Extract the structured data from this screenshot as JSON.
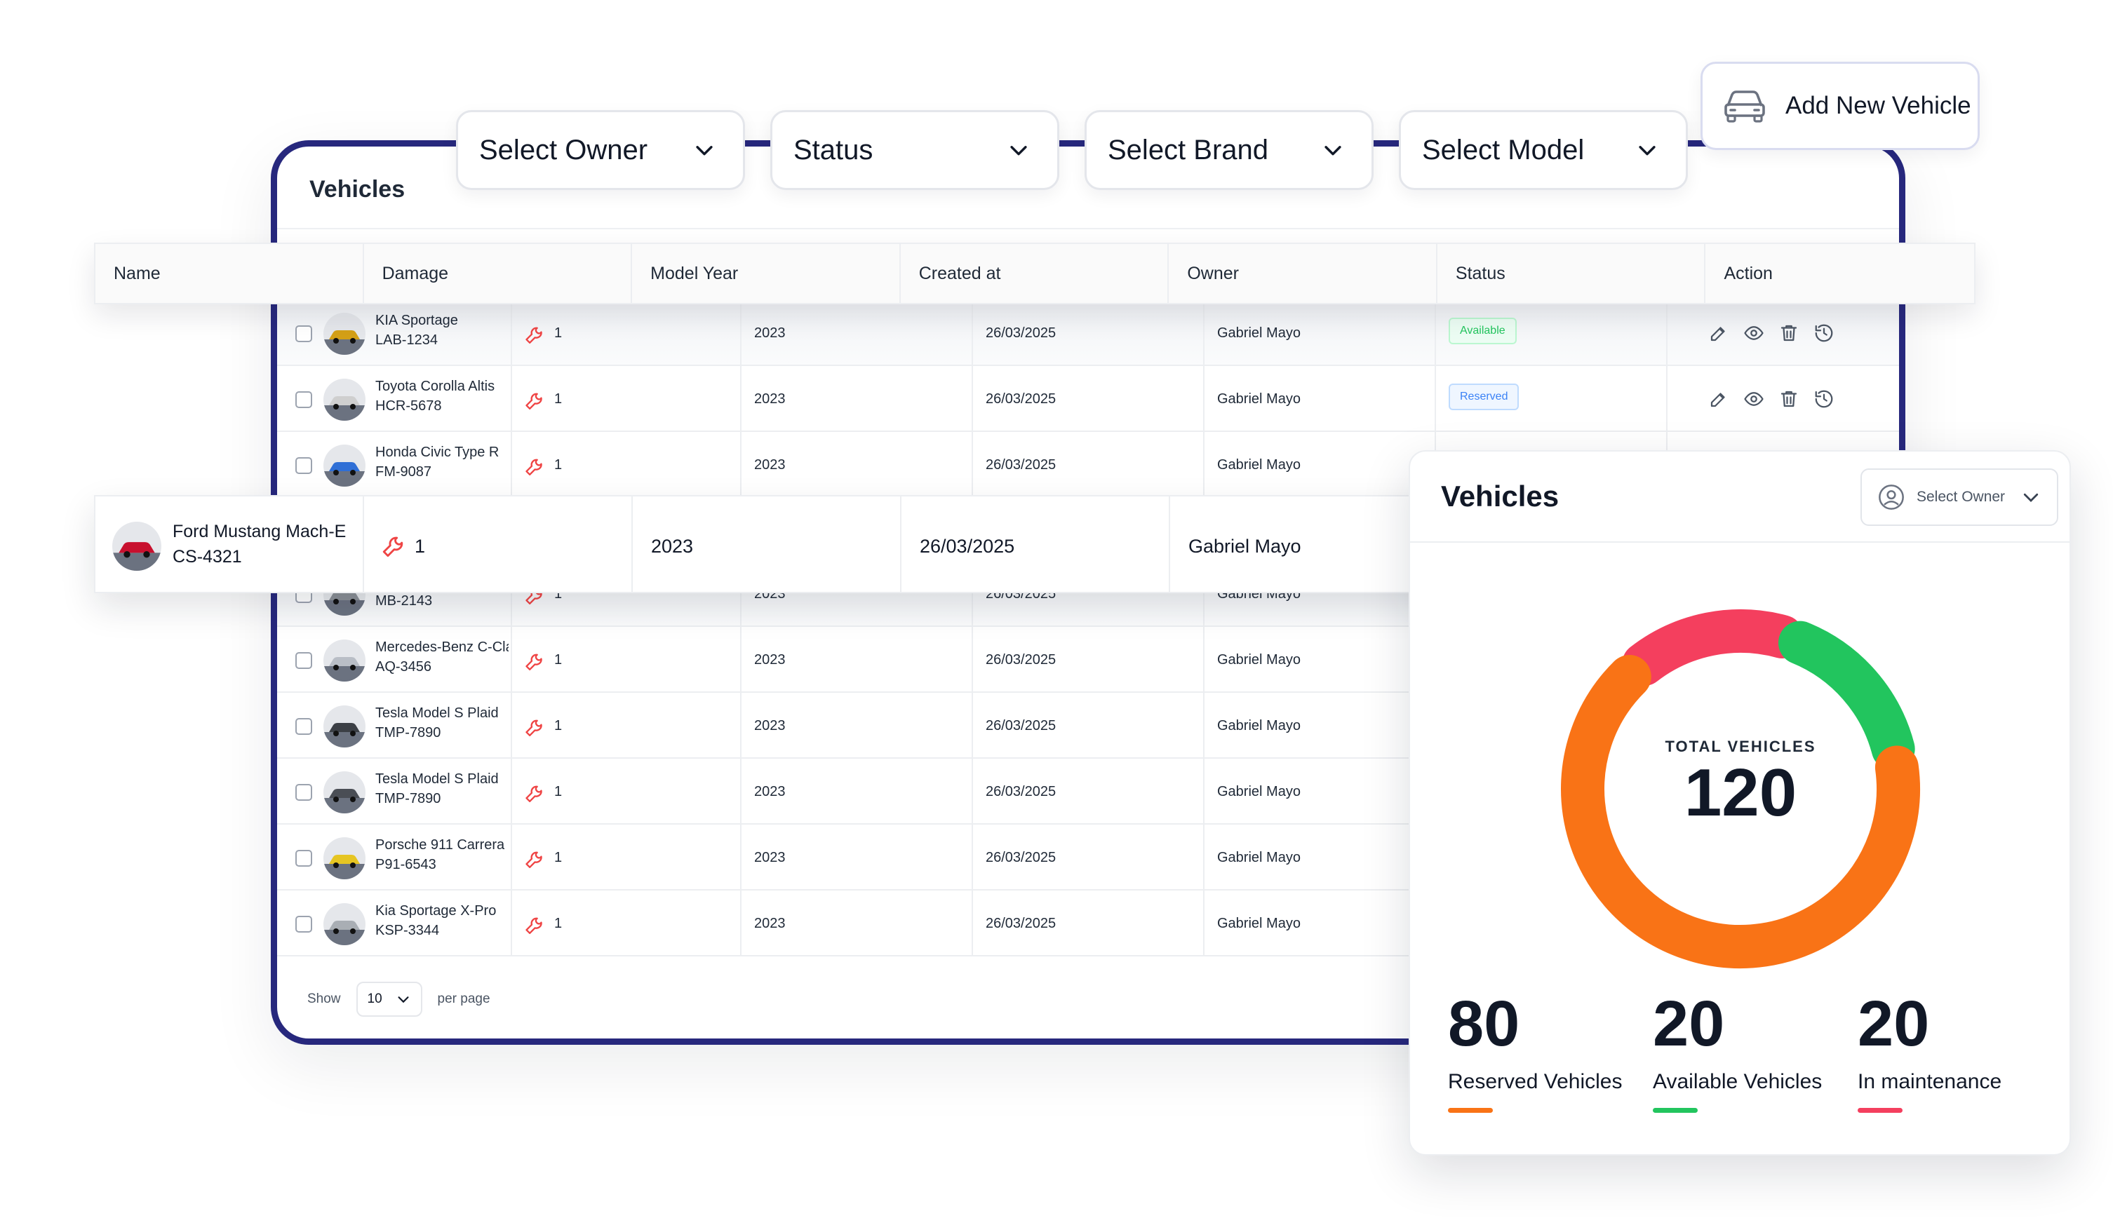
{
  "frame": {
    "title": "Vehicles"
  },
  "filters": [
    {
      "label": "Select Owner"
    },
    {
      "label": "Status"
    },
    {
      "label": "Select Brand"
    },
    {
      "label": "Select Model"
    }
  ],
  "add_button": {
    "label": "Add New Vehicle",
    "icon": "car-icon"
  },
  "table": {
    "columns": [
      "Name",
      "Damage",
      "Model Year",
      "Created at",
      "Owner",
      "Status",
      "Action"
    ],
    "rows": [
      {
        "name": "KIA Sportage",
        "plate": "LAB-1234",
        "damage": "1",
        "year": "2023",
        "created": "26/03/2025",
        "owner": "Gabriel Mayo",
        "status": "Available",
        "car_color": "#d4a017"
      },
      {
        "name": "Toyota Corolla Altis",
        "plate": "HCR-5678",
        "damage": "1",
        "year": "2023",
        "created": "26/03/2025",
        "owner": "Gabriel Mayo",
        "status": "Reserved",
        "car_color": "#cfcfcf"
      },
      {
        "name": "Honda Civic Type R",
        "plate": "FM-9087",
        "damage": "1",
        "year": "2023",
        "created": "26/03/2025",
        "owner": "Gabriel Mayo",
        "car_color": "#2f6fd6"
      },
      {
        "name": "",
        "plate": "MB-2143",
        "damage": "1",
        "year": "2023",
        "created": "26/03/2025",
        "owner": "Gabriel Mayo",
        "car_color": "#8a8f96"
      },
      {
        "name": "Mercedes-Benz C-Class",
        "plate": "AQ-3456",
        "damage": "1",
        "year": "2023",
        "created": "26/03/2025",
        "owner": "Gabriel Mayo",
        "car_color": "#b9bec6"
      },
      {
        "name": "Tesla Model S Plaid",
        "plate": "TMP-7890",
        "damage": "1",
        "year": "2023",
        "created": "26/03/2025",
        "owner": "Gabriel Mayo",
        "car_color": "#3b3f45"
      },
      {
        "name": "Tesla Model S Plaid",
        "plate": "TMP-7890",
        "damage": "1",
        "year": "2023",
        "created": "26/03/2025",
        "owner": "Gabriel Mayo",
        "car_color": "#4a4e55"
      },
      {
        "name": "Porsche 911 Carrera",
        "plate": "P91-6543",
        "damage": "1",
        "year": "2023",
        "created": "26/03/2025",
        "owner": "Gabriel Mayo",
        "car_color": "#e6c522"
      },
      {
        "name": "Kia Sportage X-Pro",
        "plate": "KSP-3344",
        "damage": "1",
        "year": "2023",
        "created": "26/03/2025",
        "owner": "Gabriel Mayo",
        "car_color": "#a9aeb4"
      }
    ],
    "highlight_row": {
      "name": "Ford Mustang Mach-E",
      "plate": "CS-4321",
      "damage": "1",
      "year": "2023",
      "created": "26/03/2025",
      "owner": "Gabriel Mayo",
      "car_color": "#c8102e"
    }
  },
  "pagination": {
    "show_label": "Show",
    "per_page_value": "10",
    "per_page_label": "per page"
  },
  "stats_card": {
    "title": "Vehicles",
    "owner_select": "Select Owner",
    "total_label": "TOTAL VEHICLES",
    "total_value": "120",
    "stats": [
      {
        "value": "80",
        "label": "Reserved Vehicles",
        "color": "#f97316"
      },
      {
        "value": "20",
        "label": "Available Vehicles",
        "color": "#22c55e"
      },
      {
        "value": "20",
        "label": "In maintenance",
        "color": "#f43f5e"
      }
    ]
  },
  "colors": {
    "frame": "#27287d",
    "damage_icon": "#ef4444"
  }
}
